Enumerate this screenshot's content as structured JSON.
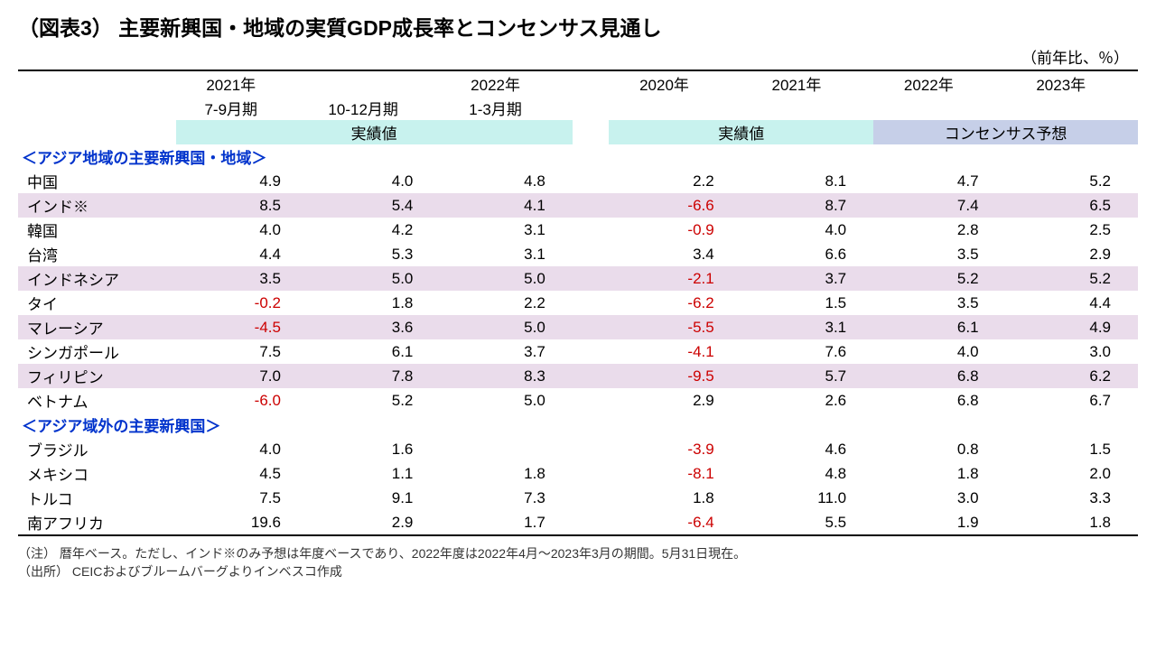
{
  "title": "（図表3） 主要新興国・地域の実質GDP成長率とコンセンサス見通し",
  "unit_label": "（前年比、％）",
  "columns": {
    "q1": {
      "line1": "2021年",
      "line2": "7-9月期"
    },
    "q2": {
      "line1": "",
      "line2": "10-12月期"
    },
    "q3": {
      "line1": "2022年",
      "line2": "1-3月期"
    },
    "y1": {
      "line1": "2020年"
    },
    "y2": {
      "line1": "2021年"
    },
    "y3": {
      "line1": "2022年"
    },
    "y4": {
      "line1": "2023年"
    }
  },
  "band_labels": {
    "actual_q": "実績値",
    "actual_y": "実績値",
    "forecast": "コンセンサス予想"
  },
  "sections": [
    {
      "header": "＜アジア地域の主要新興国・地域＞",
      "rows": [
        {
          "name": "中国",
          "q": [
            "4.9",
            "4.0",
            "4.8"
          ],
          "y": [
            "2.2",
            "8.1",
            "4.7",
            "5.2"
          ],
          "shade": false
        },
        {
          "name": "インド※",
          "q": [
            "8.5",
            "5.4",
            "4.1"
          ],
          "y": [
            "-6.6",
            "8.7",
            "7.4",
            "6.5"
          ],
          "shade": true
        },
        {
          "name": "韓国",
          "q": [
            "4.0",
            "4.2",
            "3.1"
          ],
          "y": [
            "-0.9",
            "4.0",
            "2.8",
            "2.5"
          ],
          "shade": false
        },
        {
          "name": "台湾",
          "q": [
            "4.4",
            "5.3",
            "3.1"
          ],
          "y": [
            "3.4",
            "6.6",
            "3.5",
            "2.9"
          ],
          "shade": false
        },
        {
          "name": "インドネシア",
          "q": [
            "3.5",
            "5.0",
            "5.0"
          ],
          "y": [
            "-2.1",
            "3.7",
            "5.2",
            "5.2"
          ],
          "shade": true
        },
        {
          "name": "タイ",
          "q": [
            "-0.2",
            "1.8",
            "2.2"
          ],
          "y": [
            "-6.2",
            "1.5",
            "3.5",
            "4.4"
          ],
          "shade": false
        },
        {
          "name": "マレーシア",
          "q": [
            "-4.5",
            "3.6",
            "5.0"
          ],
          "y": [
            "-5.5",
            "3.1",
            "6.1",
            "4.9"
          ],
          "shade": true
        },
        {
          "name": "シンガポール",
          "q": [
            "7.5",
            "6.1",
            "3.7"
          ],
          "y": [
            "-4.1",
            "7.6",
            "4.0",
            "3.0"
          ],
          "shade": false
        },
        {
          "name": "フィリピン",
          "q": [
            "7.0",
            "7.8",
            "8.3"
          ],
          "y": [
            "-9.5",
            "5.7",
            "6.8",
            "6.2"
          ],
          "shade": true
        },
        {
          "name": "ベトナム",
          "q": [
            "-6.0",
            "5.2",
            "5.0"
          ],
          "y": [
            "2.9",
            "2.6",
            "6.8",
            "6.7"
          ],
          "shade": false
        }
      ]
    },
    {
      "header": "＜アジア域外の主要新興国＞",
      "rows": [
        {
          "name": "ブラジル",
          "q": [
            "4.0",
            "1.6",
            ""
          ],
          "y": [
            "-3.9",
            "4.6",
            "0.8",
            "1.5"
          ],
          "shade": false
        },
        {
          "name": "メキシコ",
          "q": [
            "4.5",
            "1.1",
            "1.8"
          ],
          "y": [
            "-8.1",
            "4.8",
            "1.8",
            "2.0"
          ],
          "shade": false
        },
        {
          "name": "トルコ",
          "q": [
            "7.5",
            "9.1",
            "7.3"
          ],
          "y": [
            "1.8",
            "11.0",
            "3.0",
            "3.3"
          ],
          "shade": false
        },
        {
          "name": "南アフリカ",
          "q": [
            "19.6",
            "2.9",
            "1.7"
          ],
          "y": [
            "-6.4",
            "5.5",
            "1.9",
            "1.8"
          ],
          "shade": false
        }
      ]
    }
  ],
  "notes": {
    "n1": "（注） 暦年ベース。ただし、インド※のみ予想は年度ベースであり、2022年度は2022年4月～2023年3月の期間。5月31日現在。",
    "n2": "（出所） CEICおよびブルームバーグよりインベスコ作成"
  },
  "colors": {
    "section_header": "#0033cc",
    "negative": "#cc0000",
    "band_actual": "#c8f2ee",
    "band_forecast": "#c6cfe8",
    "row_shade": "#eadceb"
  }
}
